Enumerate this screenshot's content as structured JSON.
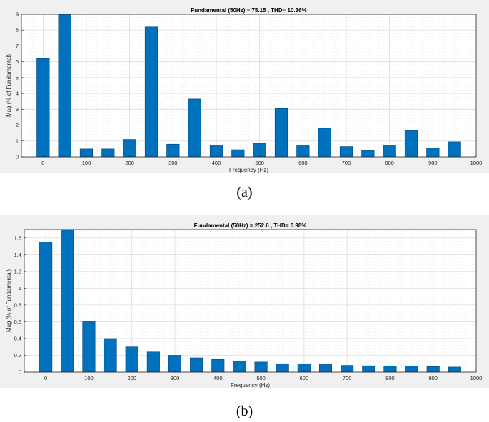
{
  "captions": {
    "a": "(a)",
    "b": "(b)"
  },
  "colors": {
    "bar": "#0072BD",
    "bar_edge": "#00447a",
    "grid_major": "#dcdcdc",
    "grid_minor": "#ececec",
    "axis": "#262626",
    "panel": "#f0f0f0"
  },
  "chart_data": [
    {
      "type": "bar",
      "title": "Fundamental (50Hz) = 75.15 , THD= 10.36%",
      "xlabel": "Frequency (Hz)",
      "ylabel": "Mag (% of Fundamental)",
      "xlim": [
        -50,
        1000
      ],
      "ylim": [
        0,
        9
      ],
      "xticks": [
        0,
        100,
        200,
        300,
        400,
        500,
        600,
        700,
        800,
        900,
        1000
      ],
      "yticks": [
        0,
        1,
        2,
        3,
        4,
        5,
        6,
        7,
        8,
        9
      ],
      "grid": true,
      "x": [
        0,
        50,
        100,
        150,
        200,
        250,
        300,
        350,
        400,
        450,
        500,
        550,
        600,
        650,
        700,
        750,
        800,
        850,
        900,
        950
      ],
      "values": [
        6.2,
        9.0,
        0.5,
        0.5,
        1.1,
        8.2,
        0.8,
        3.65,
        0.7,
        0.45,
        0.85,
        3.05,
        0.7,
        1.8,
        0.65,
        0.4,
        0.7,
        1.65,
        0.55,
        0.95
      ]
    },
    {
      "type": "bar",
      "title": "Fundamental (50Hz) = 252.6 , THD= 0.98%",
      "xlabel": "Frequency (Hz)",
      "ylabel": "Mag (% of Fundamental)",
      "xlim": [
        -50,
        1000
      ],
      "ylim": [
        0,
        1.7
      ],
      "xticks": [
        0,
        100,
        200,
        300,
        400,
        500,
        600,
        700,
        800,
        900,
        1000
      ],
      "yticks": [
        0,
        0.2,
        0.4,
        0.6,
        0.8,
        1,
        1.2,
        1.4,
        1.6
      ],
      "grid": true,
      "x": [
        0,
        50,
        100,
        150,
        200,
        250,
        300,
        350,
        400,
        450,
        500,
        550,
        600,
        650,
        700,
        750,
        800,
        850,
        900,
        950
      ],
      "values": [
        1.55,
        1.7,
        0.6,
        0.4,
        0.3,
        0.24,
        0.2,
        0.17,
        0.15,
        0.13,
        0.12,
        0.1,
        0.1,
        0.09,
        0.08,
        0.075,
        0.07,
        0.07,
        0.065,
        0.06
      ]
    }
  ]
}
